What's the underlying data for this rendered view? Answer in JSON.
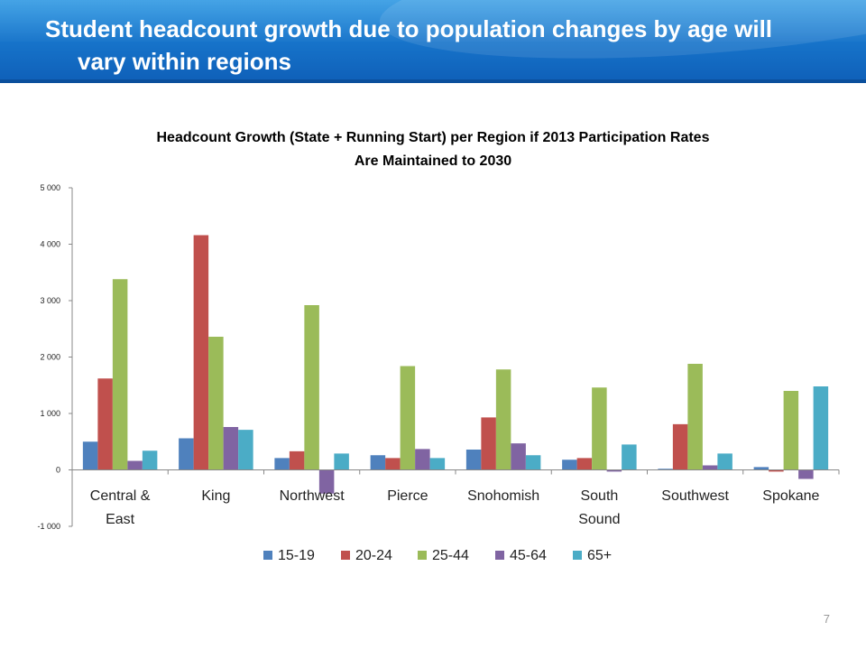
{
  "slide": {
    "title_line1": "Student headcount growth due to population changes by age will",
    "title_line2": "vary within regions",
    "page_number": "7"
  },
  "chart_data": {
    "type": "bar",
    "title_line1": "Headcount Growth (State + Running Start) per Region if 2013 Participation Rates",
    "title_line2": "Are Maintained to 2030",
    "categories": [
      "Central & East",
      "King",
      "Northwest",
      "Pierce",
      "Snohomish",
      "South Sound",
      "Southwest",
      "Spokane"
    ],
    "category_lines": [
      [
        "Central &",
        "East"
      ],
      [
        "King"
      ],
      [
        "Northwest"
      ],
      [
        "Pierce"
      ],
      [
        "Snohomish"
      ],
      [
        "South",
        "Sound"
      ],
      [
        "Southwest"
      ],
      [
        "Spokane"
      ]
    ],
    "series": [
      {
        "name": "15-19",
        "color": "#4f81bd",
        "values": [
          500,
          560,
          210,
          260,
          360,
          180,
          20,
          50
        ]
      },
      {
        "name": "20-24",
        "color": "#c0504d",
        "values": [
          1620,
          4160,
          330,
          210,
          930,
          210,
          810,
          -30
        ]
      },
      {
        "name": "25-44",
        "color": "#9bbb59",
        "values": [
          3380,
          2360,
          2920,
          1840,
          1780,
          1460,
          1880,
          1400
        ]
      },
      {
        "name": "45-64",
        "color": "#8064a2",
        "values": [
          160,
          760,
          -420,
          370,
          470,
          -30,
          80,
          -160
        ]
      },
      {
        "name": "65+",
        "color": "#4bacc6",
        "values": [
          340,
          710,
          290,
          210,
          260,
          450,
          290,
          1480
        ]
      }
    ],
    "yticks": [
      "5 000",
      "4 000",
      "3 000",
      "2 000",
      "1 000",
      "0",
      "-1 000"
    ],
    "ylim": [
      -1000,
      5000
    ],
    "legend_position": "bottom",
    "grid": false
  }
}
